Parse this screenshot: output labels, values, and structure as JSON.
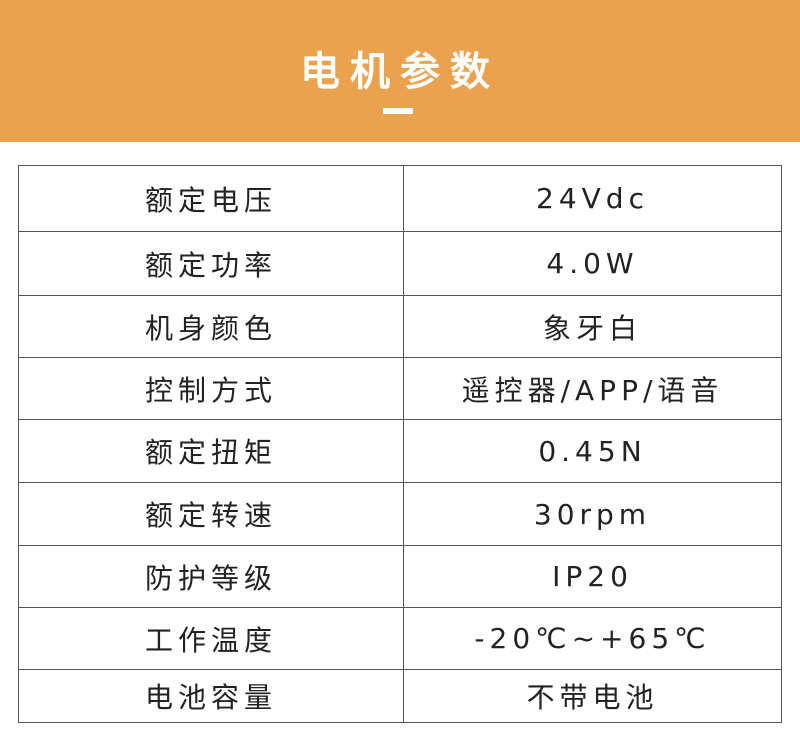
{
  "header": {
    "title": "电机参数",
    "color": "#EBA24E"
  },
  "params": [
    {
      "label": "额定电压",
      "value": "24Vdc"
    },
    {
      "label": "额定功率",
      "value": "4.0W"
    },
    {
      "label": "机身颜色",
      "value": "象牙白"
    },
    {
      "label": "控制方式",
      "value": "遥控器/APP/语音"
    },
    {
      "label": "额定扭矩",
      "value": "0.45N"
    },
    {
      "label": "额定转速",
      "value": "30rpm"
    },
    {
      "label": "防护等级",
      "value": "IP20"
    },
    {
      "label": "工作温度",
      "value": "-20℃~+65℃"
    },
    {
      "label": "电池容量",
      "value": "不带电池"
    }
  ]
}
